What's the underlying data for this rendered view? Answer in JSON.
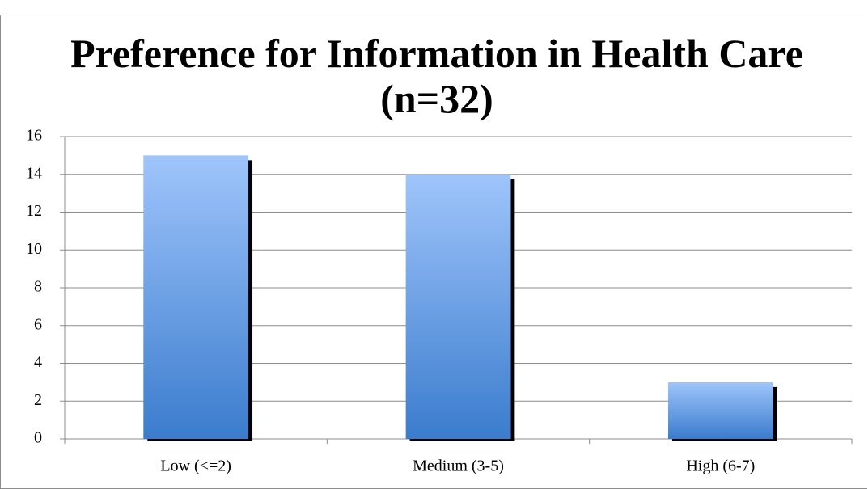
{
  "chart_data": {
    "type": "bar",
    "title": "Preference for Information in Health Care (n=32)",
    "categories": [
      "Low (<=2)",
      "Medium (3-5)",
      "High (6-7)"
    ],
    "values": [
      15,
      14,
      3
    ],
    "color": "#5a93e0",
    "ylim": [
      0,
      16
    ],
    "yticks": [
      0,
      2,
      4,
      6,
      8,
      10,
      12,
      14,
      16
    ],
    "grid": true
  }
}
